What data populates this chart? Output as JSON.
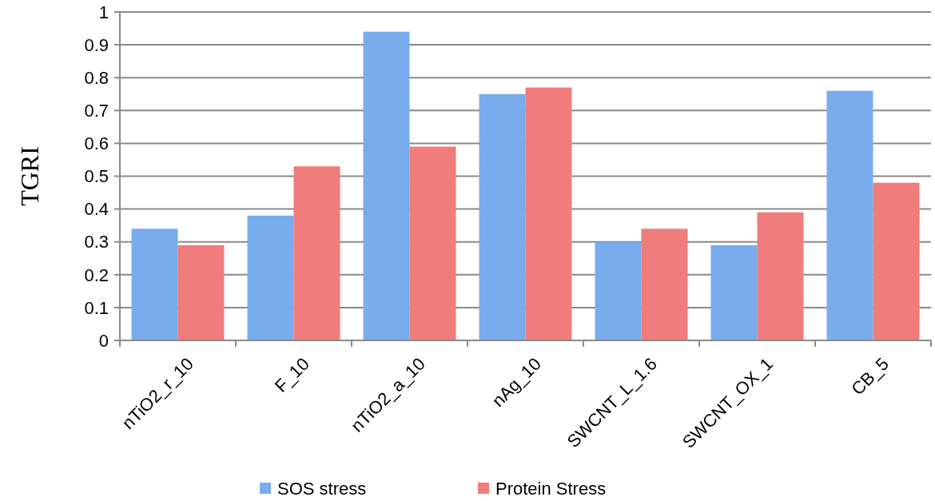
{
  "chart_data": {
    "type": "bar",
    "ylabel": "TGRI",
    "categories": [
      "nTiO2_r_10",
      "F_10",
      "nTiO2_a_10",
      "nAg_10",
      "SWCNT_L_1.6",
      "SWCNT_OX_1",
      "CB_5"
    ],
    "series": [
      {
        "name": "SOS stress",
        "color": "#78acec",
        "values": [
          0.34,
          0.38,
          0.94,
          0.75,
          0.3,
          0.29,
          0.76
        ]
      },
      {
        "name": "Protein Stress",
        "color": "#f07c7c",
        "values": [
          0.29,
          0.53,
          0.59,
          0.77,
          0.34,
          0.39,
          0.48
        ]
      }
    ],
    "ylim": [
      0,
      1
    ],
    "yticks": [
      0,
      0.1,
      0.2,
      0.3,
      0.4,
      0.5,
      0.6,
      0.7,
      0.8,
      0.9,
      1
    ],
    "grid": "y",
    "legend": "bottom"
  }
}
